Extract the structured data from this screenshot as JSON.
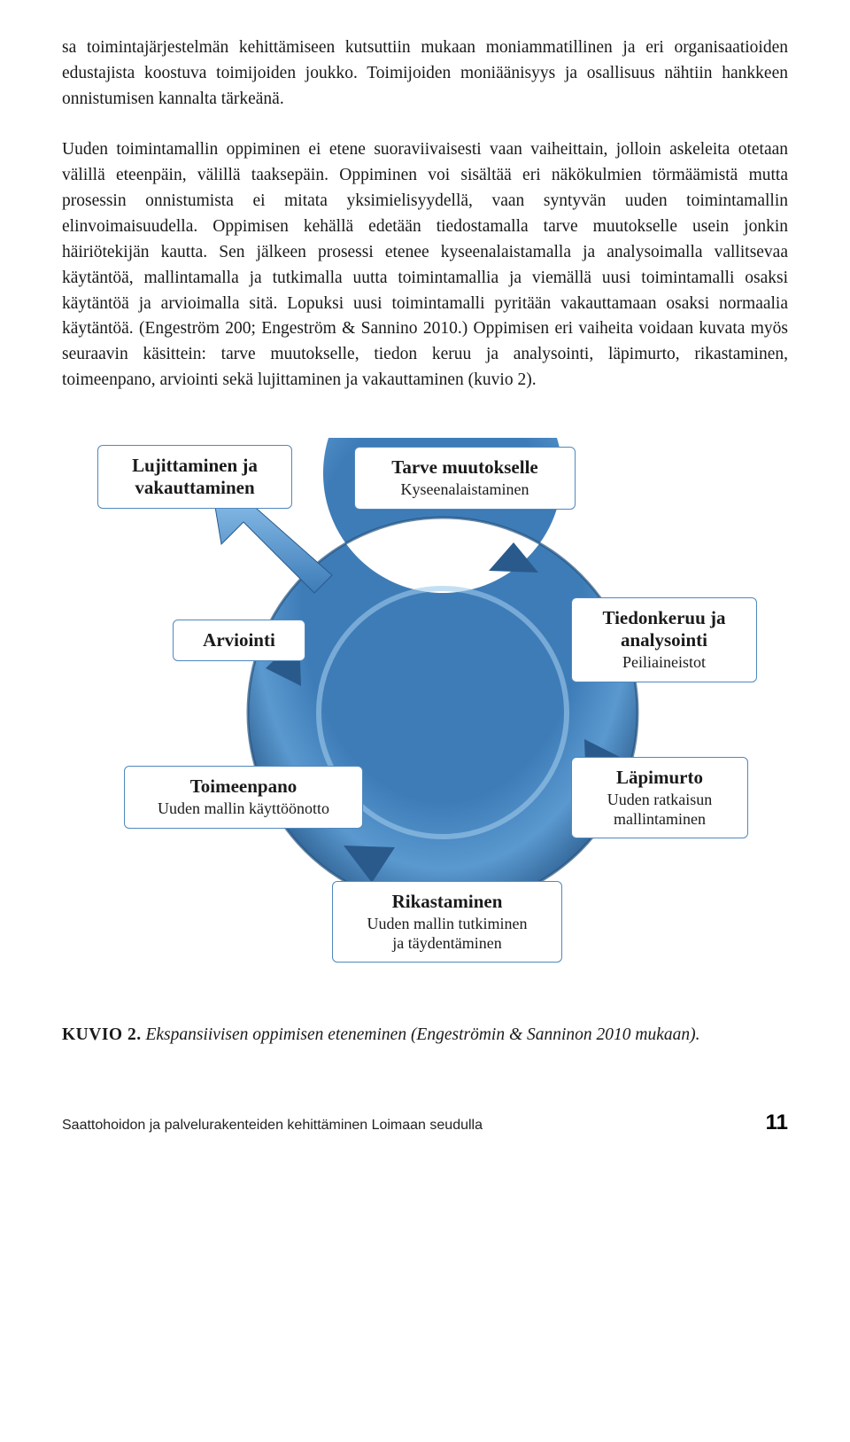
{
  "body_text": "sa toimintajärjestelmän kehittämiseen kutsuttiin mukaan moniammatillinen ja eri organisaatioiden edustajista koostuva toimijoiden joukko. Toimijoiden moniäänisyys ja osallisuus nähtiin hankkeen onnistumisen kannalta tärkeänä.\n\nUuden toimintamallin oppiminen ei etene suoraviivaisesti vaan vaiheittain, jolloin askeleita otetaan välillä eteenpäin, välillä taaksepäin. Oppiminen voi sisältää eri näkökulmien törmäämistä mutta prosessin onnistumista ei mitata yksimielisyydellä, vaan syntyvän uuden toimintamallin elinvoimaisuudella. Oppimisen kehällä edetään tiedostamalla tarve muutokselle usein jonkin häiriötekijän kautta. Sen jälkeen prosessi etenee kyseenalaistamalla ja analysoimalla vallitsevaa käytäntöä, mallintamalla ja tutkimalla uutta toimintamallia ja viemällä uusi toimintamalli osaksi käytäntöä ja arvioimalla sitä. Lopuksi uusi toimintamalli pyritään vakauttamaan osaksi normaalia käytäntöä. (Engeström 200; Engeström & Sannino 2010.) Oppimisen eri vaiheita voidaan kuvata myös seuraavin käsittein: tarve muutokselle, tiedon keruu ja analysointi, läpimurto, rikastaminen, toimeenpano, arviointi sekä lujittaminen ja vakauttaminen (kuvio 2).",
  "diagram": {
    "type": "cycle",
    "ring_fill": "#3e7cb8",
    "ring_highlight": "#7fb4e0",
    "ring_shadow": "#2a5a8c",
    "node_border": "#4f88be",
    "node_bg": "#ffffff",
    "title_fontsize": 21,
    "sub_fontsize": 18,
    "nodes": {
      "n1": {
        "title": "Lujittaminen ja\nvakauttaminen",
        "sub": ""
      },
      "n2": {
        "title": "Tarve muutokselle",
        "sub": "Kyseenalaistaminen"
      },
      "n3": {
        "title": "Tiedonkeruu ja\nanalysointi",
        "sub": "Peiliaineistot"
      },
      "n4": {
        "title": "Läpimurto",
        "sub": "Uuden ratkaisun\nmallintaminen"
      },
      "n5": {
        "title": "Rikastaminen",
        "sub": "Uuden mallin tutkiminen\nja täydentäminen"
      },
      "n6": {
        "title": "Toimeenpano",
        "sub": "Uuden mallin käyttöönotto"
      },
      "n7": {
        "title": "Arviointi",
        "sub": ""
      }
    }
  },
  "caption": {
    "label": "KUVIO 2.",
    "text": " Ekspansiivisen oppimisen eteneminen (Engeströmin & Sanninon 2010 mukaan)."
  },
  "footer": {
    "text": "Saattohoidon ja palvelurakenteiden kehittäminen Loimaan seudulla",
    "page": "11"
  }
}
